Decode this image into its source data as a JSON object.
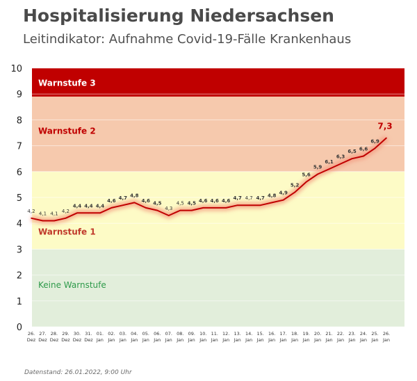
{
  "header": {
    "title": "Hospitalisierung Niedersachsen",
    "subtitle": "Leitindikator: Aufnahme Covid-19-Fälle Krankenhaus"
  },
  "footer": {
    "text": "Datenstand: 26.01.2022, 9:00 Uhr"
  },
  "chart_data": {
    "type": "line",
    "ylim": [
      0,
      10
    ],
    "yticks": [
      "0",
      "1",
      "2",
      "3",
      "4",
      "5",
      "6",
      "7",
      "8",
      "9",
      "10"
    ],
    "grid": "horizontal",
    "categories": [
      [
        "26.",
        "Dez"
      ],
      [
        "27.",
        "Dez"
      ],
      [
        "28.",
        "Dez"
      ],
      [
        "29.",
        "Dez"
      ],
      [
        "30.",
        "Dez"
      ],
      [
        "31.",
        "Dez"
      ],
      [
        "01.",
        "Jan"
      ],
      [
        "02.",
        "Jan"
      ],
      [
        "03.",
        "Jan"
      ],
      [
        "04.",
        "Jan"
      ],
      [
        "05.",
        "Jan"
      ],
      [
        "06.",
        "Jan"
      ],
      [
        "07.",
        "Jan"
      ],
      [
        "08.",
        "Jan"
      ],
      [
        "09.",
        "Jan"
      ],
      [
        "10.",
        "Jan"
      ],
      [
        "11.",
        "Jan"
      ],
      [
        "12.",
        "Jan"
      ],
      [
        "13.",
        "Jan"
      ],
      [
        "14.",
        "Jan"
      ],
      [
        "15.",
        "Jan"
      ],
      [
        "16.",
        "Jan"
      ],
      [
        "17.",
        "Jan"
      ],
      [
        "18.",
        "Jan"
      ],
      [
        "19.",
        "Jan"
      ],
      [
        "20.",
        "Jan"
      ],
      [
        "21.",
        "Jan"
      ],
      [
        "22.",
        "Jan"
      ],
      [
        "23.",
        "Jan"
      ],
      [
        "24.",
        "Jan"
      ],
      [
        "25.",
        "Jan"
      ],
      [
        "26.",
        "Jan"
      ]
    ],
    "values": [
      4.2,
      4.1,
      4.1,
      4.2,
      4.4,
      4.4,
      4.4,
      4.6,
      4.7,
      4.8,
      4.6,
      4.5,
      4.3,
      4.5,
      4.5,
      4.6,
      4.6,
      4.6,
      4.7,
      4.7,
      4.7,
      4.8,
      4.9,
      5.2,
      5.6,
      5.9,
      6.1,
      6.3,
      6.5,
      6.6,
      6.9,
      7.3
    ],
    "value_labels": [
      "4,2",
      "4,1",
      "4,1",
      "4,2",
      "4,4",
      "4,4",
      "4,4",
      "4,6",
      "4,7",
      "4,8",
      "4,6",
      "4,5",
      "4,3",
      "4,5",
      "4,5",
      "4,6",
      "4,6",
      "4,6",
      "4,7",
      "4,7",
      "4,7",
      "4,8",
      "4,9",
      "5,2",
      "5,6",
      "5,9",
      "6,1",
      "6,3",
      "6,5",
      "6,6",
      "6,9",
      "7,3"
    ],
    "zones": [
      {
        "label": "Keine Warnstufe",
        "from": 0,
        "to": 3,
        "fill": "#e2eedb",
        "label_color": "#2e9a4a"
      },
      {
        "label": "Warnstufe 1",
        "from": 3,
        "to": 6,
        "fill": "#fdfbc6",
        "label_color": "#c0392b"
      },
      {
        "label": "Warnstufe 2",
        "from": 6,
        "to": 8.9,
        "fill": "#f6c9ad",
        "label_color": "#c00000"
      },
      {
        "label": "Warnstufe 3",
        "from": 8.9,
        "to": 10,
        "fill": "#c00000",
        "label_color": "#ffffff"
      }
    ],
    "line_color": "#c00000",
    "glow_color": "#f39a80"
  }
}
